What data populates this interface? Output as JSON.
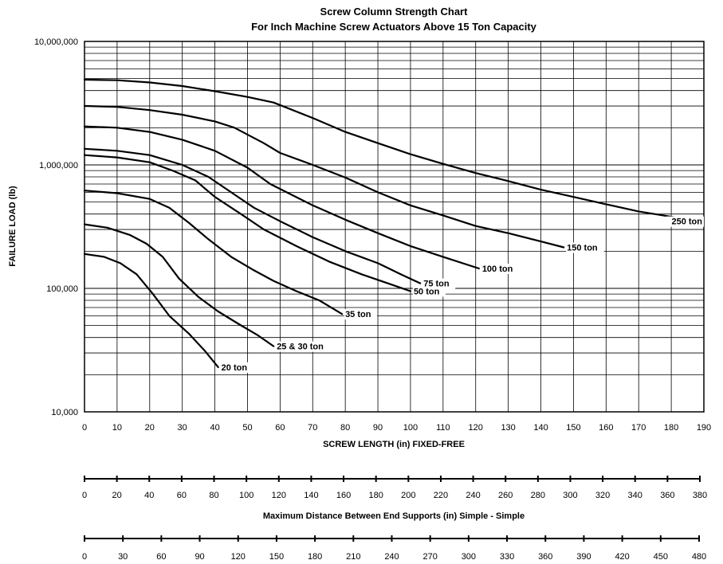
{
  "chart_data": {
    "type": "line",
    "title": "Screw Column Strength Chart",
    "subtitle": "For Inch Machine Screw Actuators Above 15 Ton Capacity",
    "xlabel": "SCREW LENGTH (in) FIXED-FREE",
    "ylabel": "FAILURE LOAD (lb)",
    "yscale": "log",
    "xlim": [
      0,
      190
    ],
    "ylim": [
      10000,
      10000000
    ],
    "grid": true,
    "x_ticks": [
      "0",
      "10",
      "20",
      "30",
      "40",
      "50",
      "60",
      "70",
      "80",
      "90",
      "100",
      "110",
      "120",
      "130",
      "140",
      "150",
      "160",
      "170",
      "180",
      "190"
    ],
    "y_ticks": [
      "10,000",
      "100,000",
      "1,000,000",
      "10,000,000"
    ],
    "series": [
      {
        "name": "250 ton",
        "points": [
          [
            0,
            4900000
          ],
          [
            10,
            4850000
          ],
          [
            20,
            4650000
          ],
          [
            30,
            4350000
          ],
          [
            40,
            3950000
          ],
          [
            50,
            3550000
          ],
          [
            58,
            3200000
          ],
          [
            70,
            2400000
          ],
          [
            80,
            1850000
          ],
          [
            90,
            1500000
          ],
          [
            100,
            1220000
          ],
          [
            110,
            1020000
          ],
          [
            120,
            860000
          ],
          [
            130,
            740000
          ],
          [
            140,
            630000
          ],
          [
            150,
            550000
          ],
          [
            160,
            480000
          ],
          [
            170,
            420000
          ],
          [
            180,
            380000
          ],
          [
            187,
            350000
          ]
        ]
      },
      {
        "name": "150 ton",
        "points": [
          [
            0,
            3000000
          ],
          [
            10,
            2950000
          ],
          [
            20,
            2780000
          ],
          [
            30,
            2550000
          ],
          [
            40,
            2250000
          ],
          [
            46,
            2000000
          ],
          [
            55,
            1500000
          ],
          [
            60,
            1250000
          ],
          [
            70,
            1000000
          ],
          [
            80,
            790000
          ],
          [
            90,
            600000
          ],
          [
            100,
            470000
          ],
          [
            110,
            390000
          ],
          [
            120,
            320000
          ],
          [
            130,
            280000
          ],
          [
            140,
            240000
          ],
          [
            147,
            215000
          ]
        ]
      },
      {
        "name": "100 ton",
        "points": [
          [
            0,
            2050000
          ],
          [
            10,
            2000000
          ],
          [
            20,
            1850000
          ],
          [
            30,
            1600000
          ],
          [
            40,
            1300000
          ],
          [
            50,
            950000
          ],
          [
            57,
            700000
          ],
          [
            70,
            470000
          ],
          [
            80,
            360000
          ],
          [
            90,
            280000
          ],
          [
            100,
            220000
          ],
          [
            110,
            180000
          ],
          [
            121,
            145000
          ]
        ]
      },
      {
        "name": "75 ton",
        "points": [
          [
            0,
            1350000
          ],
          [
            10,
            1300000
          ],
          [
            20,
            1200000
          ],
          [
            30,
            1000000
          ],
          [
            38,
            800000
          ],
          [
            45,
            600000
          ],
          [
            52,
            450000
          ],
          [
            60,
            350000
          ],
          [
            70,
            260000
          ],
          [
            80,
            200000
          ],
          [
            90,
            160000
          ],
          [
            97,
            130000
          ],
          [
            103,
            110000
          ]
        ]
      },
      {
        "name": "50 ton",
        "points": [
          [
            0,
            1200000
          ],
          [
            10,
            1150000
          ],
          [
            20,
            1050000
          ],
          [
            27,
            900000
          ],
          [
            34,
            750000
          ],
          [
            40,
            550000
          ],
          [
            48,
            400000
          ],
          [
            55,
            300000
          ],
          [
            65,
            220000
          ],
          [
            75,
            165000
          ],
          [
            85,
            130000
          ],
          [
            93,
            110000
          ],
          [
            100,
            95000
          ]
        ]
      },
      {
        "name": "35 ton",
        "points": [
          [
            0,
            620000
          ],
          [
            10,
            590000
          ],
          [
            20,
            530000
          ],
          [
            26,
            450000
          ],
          [
            32,
            340000
          ],
          [
            38,
            250000
          ],
          [
            45,
            180000
          ],
          [
            52,
            140000
          ],
          [
            58,
            115000
          ],
          [
            65,
            95000
          ],
          [
            72,
            80000
          ],
          [
            79,
            62000
          ]
        ]
      },
      {
        "name": "25 & 30 ton",
        "points": [
          [
            0,
            330000
          ],
          [
            7,
            310000
          ],
          [
            14,
            270000
          ],
          [
            19,
            230000
          ],
          [
            24,
            180000
          ],
          [
            29,
            120000
          ],
          [
            35,
            85000
          ],
          [
            41,
            65000
          ],
          [
            47,
            52000
          ],
          [
            53,
            42000
          ],
          [
            58,
            34000
          ]
        ]
      },
      {
        "name": "20 ton",
        "points": [
          [
            0,
            190000
          ],
          [
            6,
            180000
          ],
          [
            11,
            160000
          ],
          [
            16,
            130000
          ],
          [
            21,
            90000
          ],
          [
            26,
            60000
          ],
          [
            32,
            43000
          ],
          [
            37,
            31000
          ],
          [
            41,
            23000
          ]
        ]
      }
    ],
    "secondary_scales": [
      {
        "ticks": [
          "0",
          "20",
          "40",
          "60",
          "80",
          "100",
          "120",
          "140",
          "160",
          "180",
          "200",
          "220",
          "240",
          "260",
          "280",
          "300",
          "320",
          "340",
          "360",
          "380"
        ],
        "label": "Maximum Distance Between End Supports (in) Simple - Simple"
      },
      {
        "ticks": [
          "0",
          "30",
          "60",
          "90",
          "120",
          "150",
          "180",
          "210",
          "240",
          "270",
          "300",
          "330",
          "360",
          "390",
          "420",
          "450",
          "480"
        ],
        "label": ""
      }
    ]
  }
}
